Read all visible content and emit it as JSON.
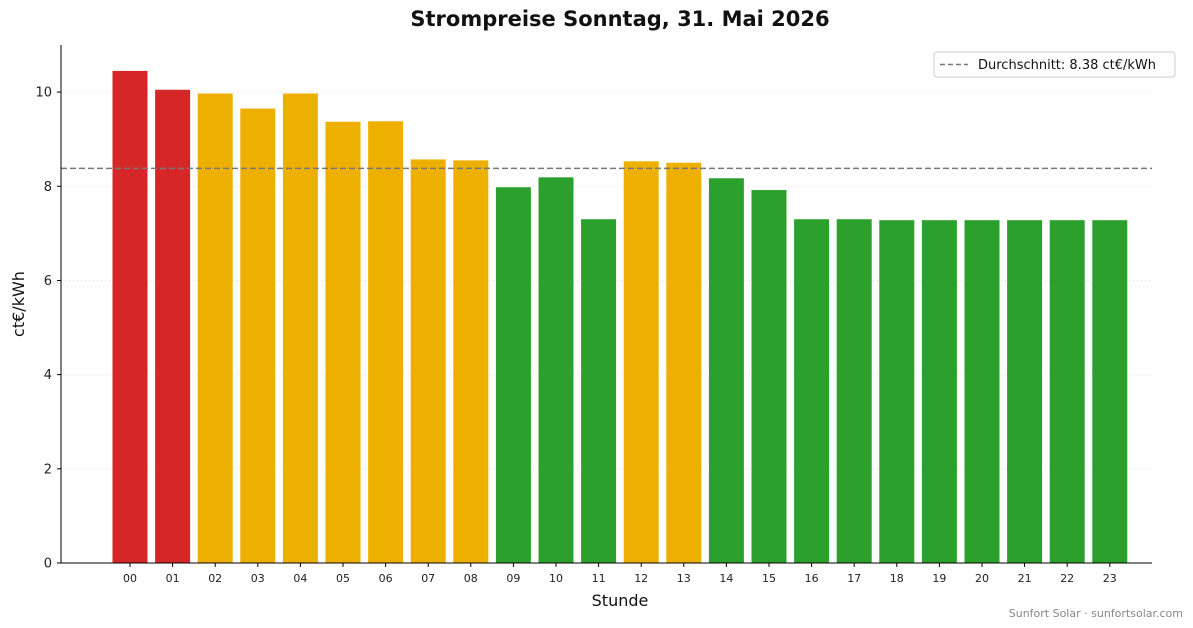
{
  "chart_data": {
    "type": "bar",
    "title": "Strompreise Sonntag, 31. Mai 2026",
    "xlabel": "Stunde",
    "ylabel": "ct€/kWh",
    "ylim": [
      0,
      11
    ],
    "yticks": [
      0,
      2,
      4,
      6,
      8,
      10
    ],
    "grid": "horizontal dotted",
    "categories": [
      "00",
      "01",
      "02",
      "03",
      "04",
      "05",
      "06",
      "07",
      "08",
      "09",
      "10",
      "11",
      "12",
      "13",
      "14",
      "15",
      "16",
      "17",
      "18",
      "19",
      "20",
      "21",
      "22",
      "23"
    ],
    "values": [
      10.45,
      10.05,
      9.97,
      9.65,
      9.97,
      9.37,
      9.38,
      8.57,
      8.55,
      7.98,
      8.19,
      7.3,
      8.53,
      8.5,
      8.17,
      7.92,
      7.3,
      7.3,
      7.28,
      7.28,
      7.28,
      7.28,
      7.28,
      7.28
    ],
    "bar_colors": [
      "#d62728",
      "#d62728",
      "#eeb000",
      "#eeb000",
      "#eeb000",
      "#eeb000",
      "#eeb000",
      "#eeb000",
      "#eeb000",
      "#2ca02c",
      "#2ca02c",
      "#2ca02c",
      "#eeb000",
      "#eeb000",
      "#2ca02c",
      "#2ca02c",
      "#2ca02c",
      "#2ca02c",
      "#2ca02c",
      "#2ca02c",
      "#2ca02c",
      "#2ca02c",
      "#2ca02c",
      "#2ca02c"
    ],
    "average": {
      "value": 8.38,
      "label": "Durchschnitt: 8.38 ct€/kWh",
      "color": "#777777",
      "style": "dashed"
    },
    "legend_position": "top-right",
    "footer": "Sunfort Solar · sunfortsolar.com"
  }
}
